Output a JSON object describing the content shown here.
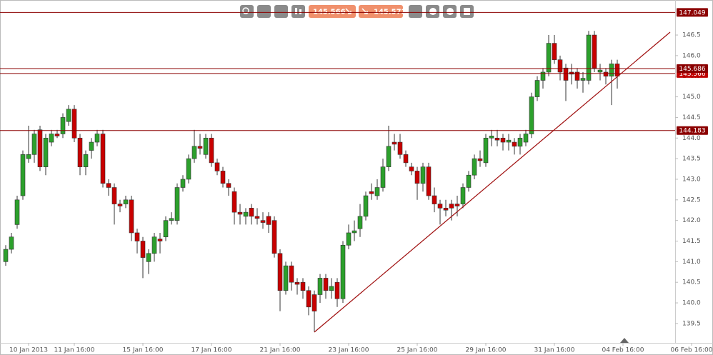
{
  "chart_data": {
    "type": "candlestick",
    "toolbar": {
      "bid": "145.566",
      "ask": "145.572"
    },
    "categories": [
      null,
      null,
      null,
      null,
      "10 Jan 2013",
      null,
      null,
      null,
      null,
      null,
      null,
      null,
      "11 Jan 16:00",
      null,
      null,
      null,
      null,
      null,
      null,
      null,
      null,
      null,
      null,
      null,
      "15 Jan 16:00",
      null,
      null,
      null,
      null,
      null,
      null,
      null,
      null,
      null,
      null,
      null,
      "17 Jan 16:00",
      null,
      null,
      null,
      null,
      null,
      null,
      null,
      null,
      null,
      null,
      null,
      "21 Jan 16:00",
      null,
      null,
      null,
      null,
      null,
      null,
      null,
      null,
      null,
      null,
      null,
      "23 Jan 16:00",
      null,
      null,
      null,
      null,
      null,
      null,
      null,
      null,
      null,
      null,
      null,
      "25 Jan 16:00",
      null,
      null,
      null,
      null,
      null,
      null,
      null,
      null,
      null,
      null,
      null,
      "29 Jan 16:00",
      null,
      null,
      null,
      null,
      null,
      null,
      null,
      null,
      null,
      null,
      null,
      "31 Jan 16:00",
      null,
      null,
      null,
      null,
      null,
      null,
      null,
      null,
      null,
      null,
      null,
      "04 Feb 16:00",
      null,
      null,
      null,
      null,
      null,
      null,
      null,
      null,
      null,
      null,
      null,
      "06 Feb 16:00"
    ],
    "open": [
      141.0,
      141.3,
      141.9,
      142.6,
      143.5,
      143.6,
      144.2,
      143.3,
      143.9,
      144.1,
      144.1,
      144.4,
      144.7,
      144.0,
      143.3,
      143.7,
      143.9,
      144.1,
      142.9,
      142.8,
      142.4,
      142.4,
      142.5,
      141.7,
      141.5,
      141.0,
      141.2,
      141.55,
      141.6,
      142.0,
      142.0,
      142.8,
      143.0,
      143.5,
      143.8,
      143.6,
      144.0,
      143.4,
      143.2,
      142.9,
      142.7,
      142.2,
      142.1,
      142.3,
      142.1,
      142.0,
      142.1,
      142.0,
      141.2,
      140.3,
      140.9,
      140.5,
      140.5,
      140.3,
      140.2,
      140.2,
      140.6,
      140.3,
      140.5,
      140.1,
      141.4,
      141.7,
      141.8,
      142.1,
      142.7,
      142.6,
      142.8,
      143.3,
      143.9,
      143.9,
      143.6,
      143.3,
      143.2,
      142.9,
      143.3,
      142.6,
      142.4,
      142.3,
      142.4,
      142.4,
      142.4,
      142.8,
      143.1,
      143.5,
      143.4,
      144.0,
      144.0,
      144.0,
      143.9,
      143.9,
      143.8,
      143.9,
      144.1,
      145.0,
      145.4,
      145.6,
      146.3,
      145.9,
      145.7,
      145.6,
      145.6,
      145.4,
      145.4,
      146.5,
      145.6,
      145.6,
      145.5,
      145.8,
      null,
      null,
      null,
      null,
      null,
      null,
      null,
      null,
      null,
      null,
      null,
      null,
      null
    ],
    "high": [
      141.4,
      141.7,
      142.6,
      143.7,
      144.3,
      144.2,
      144.3,
      144.1,
      144.2,
      144.2,
      144.6,
      144.8,
      144.8,
      144.1,
      143.7,
      144.0,
      144.2,
      144.2,
      143.0,
      142.9,
      142.5,
      142.6,
      142.6,
      141.8,
      141.6,
      141.3,
      141.7,
      141.7,
      142.1,
      142.2,
      142.9,
      143.1,
      143.6,
      144.2,
      144.1,
      144.1,
      144.1,
      143.5,
      143.3,
      143.0,
      142.8,
      142.4,
      142.3,
      142.4,
      142.3,
      142.2,
      142.2,
      142.1,
      141.3,
      141.0,
      141.0,
      140.6,
      140.6,
      140.4,
      140.3,
      140.7,
      140.7,
      140.6,
      140.6,
      141.5,
      141.9,
      142.0,
      142.4,
      142.7,
      142.9,
      143.0,
      143.5,
      144.3,
      144.1,
      144.1,
      143.7,
      143.4,
      143.3,
      143.4,
      143.4,
      142.8,
      142.5,
      142.5,
      142.5,
      142.6,
      142.9,
      143.2,
      143.6,
      143.7,
      144.1,
      144.2,
      144.2,
      144.1,
      144.1,
      144.0,
      144.1,
      144.2,
      145.1,
      145.5,
      145.7,
      146.5,
      146.5,
      146.0,
      145.8,
      145.8,
      145.7,
      145.6,
      146.6,
      146.6,
      145.8,
      145.7,
      145.9,
      145.9,
      null,
      null,
      null,
      null,
      null,
      null,
      null,
      null,
      null,
      null,
      null,
      null,
      null
    ],
    "low": [
      140.9,
      141.2,
      141.8,
      142.5,
      143.4,
      143.4,
      143.2,
      143.1,
      143.8,
      144.0,
      144.0,
      144.3,
      143.9,
      143.1,
      143.1,
      143.5,
      143.8,
      142.8,
      142.6,
      141.9,
      142.2,
      142.3,
      141.5,
      141.2,
      140.6,
      140.7,
      141.0,
      141.2,
      141.5,
      141.9,
      141.9,
      142.7,
      142.9,
      143.4,
      143.6,
      143.5,
      143.3,
      143.1,
      142.8,
      142.6,
      141.9,
      141.9,
      141.9,
      141.9,
      141.9,
      141.8,
      141.7,
      141.1,
      139.8,
      140.2,
      140.3,
      140.2,
      140.1,
      139.7,
      139.3,
      140.0,
      140.1,
      140.1,
      139.9,
      140.0,
      141.3,
      141.5,
      141.6,
      142.0,
      142.5,
      142.5,
      142.7,
      143.2,
      143.7,
      143.5,
      143.3,
      143.1,
      142.5,
      142.7,
      142.5,
      142.2,
      141.9,
      142.1,
      142.0,
      142.1,
      142.3,
      142.7,
      143.0,
      143.3,
      143.3,
      143.8,
      143.8,
      143.7,
      143.7,
      143.6,
      143.6,
      143.8,
      144.0,
      144.9,
      145.2,
      145.5,
      145.8,
      145.4,
      144.9,
      145.3,
      145.2,
      145.1,
      145.3,
      145.6,
      145.4,
      145.3,
      144.8,
      145.2,
      null,
      null,
      null,
      null,
      null,
      null,
      null,
      null,
      null,
      null,
      null,
      null,
      null
    ],
    "close": [
      141.3,
      141.6,
      142.5,
      143.6,
      143.6,
      144.1,
      143.3,
      144.0,
      144.1,
      144.05,
      144.5,
      144.7,
      144.0,
      143.3,
      143.6,
      143.9,
      144.1,
      142.9,
      142.8,
      142.4,
      142.35,
      142.5,
      141.7,
      141.5,
      141.1,
      141.2,
      141.6,
      141.5,
      142.0,
      142.05,
      142.8,
      143.0,
      143.5,
      143.8,
      143.75,
      144.0,
      143.4,
      143.2,
      142.9,
      142.8,
      142.2,
      142.15,
      142.2,
      142.1,
      142.05,
      141.95,
      141.9,
      141.2,
      140.3,
      140.9,
      140.5,
      140.45,
      140.3,
      139.9,
      139.8,
      140.6,
      140.3,
      140.4,
      140.1,
      141.4,
      141.7,
      141.75,
      142.1,
      142.6,
      142.65,
      142.8,
      143.3,
      143.8,
      143.85,
      143.6,
      143.4,
      143.2,
      142.9,
      143.3,
      142.6,
      142.4,
      142.3,
      142.25,
      142.3,
      142.35,
      142.8,
      143.1,
      143.5,
      143.45,
      144.0,
      144.05,
      143.95,
      143.9,
      143.95,
      143.8,
      144.0,
      144.1,
      145.0,
      145.4,
      145.6,
      146.3,
      145.9,
      145.6,
      145.4,
      145.55,
      145.4,
      145.45,
      146.5,
      145.7,
      145.65,
      145.5,
      145.8,
      145.5,
      null,
      null,
      null,
      null,
      null,
      null,
      null,
      null,
      null,
      null,
      null,
      null,
      null
    ],
    "up_color": "#2ca02c",
    "down_color": "#c80000",
    "ylim": [
      139.03,
      147.35
    ],
    "yticks": [
      139.5,
      {
        "value": 140.0,
        "label": "140.0"
      },
      140.5,
      {
        "value": 141.0,
        "label": "141.0"
      },
      141.5,
      {
        "value": 142.0,
        "label": "142.0"
      },
      142.5,
      {
        "value": 143.0,
        "label": "143.0"
      },
      143.5,
      {
        "value": 144.0,
        "label": "144.0"
      },
      144.5,
      {
        "value": 145.0,
        "label": "145.0"
      },
      145.5,
      {
        "value": 146.0,
        "label": "146.0"
      },
      146.5
    ],
    "levels": [
      147.049,
      144.183,
      145.566,
      145.686
    ],
    "level_color": "#8b0000",
    "trendline": {
      "x": [
        54,
        116.25
      ],
      "y": [
        139.29,
        146.57
      ],
      "color": "#a01010"
    }
  }
}
